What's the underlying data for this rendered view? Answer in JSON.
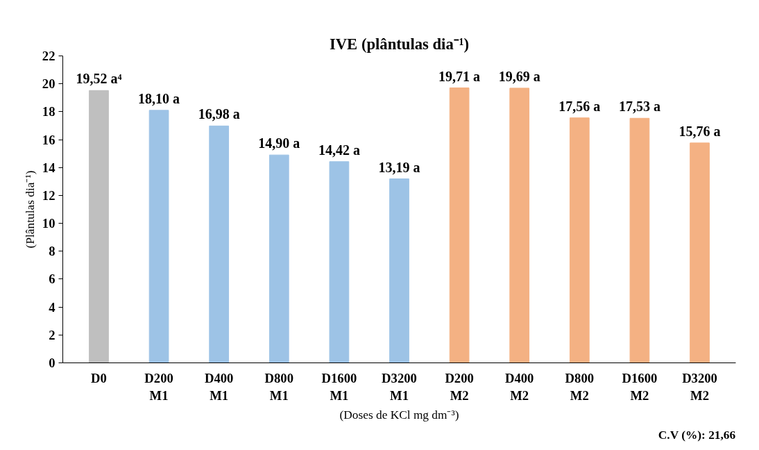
{
  "chart_data": {
    "type": "bar",
    "title": "IVE (plântulas dia⁻¹)",
    "ylabel": "(Plântulas dia⁻¹)",
    "xlabel": "(Doses de KCl mg dm⁻³)",
    "categories": [
      "D0",
      "D200\nM1",
      "D400\nM1",
      "D800\nM1",
      "D1600\nM1",
      "D3200\nM1",
      "D200\nM2",
      "D400\nM2",
      "D800\nM2",
      "D1600\nM2",
      "D3200\nM2"
    ],
    "values": [
      19.52,
      18.1,
      16.98,
      14.9,
      14.42,
      13.19,
      19.71,
      19.69,
      17.56,
      17.53,
      15.76
    ],
    "colors": [
      "#bfbfbf",
      "#9dc3e6",
      "#9dc3e6",
      "#9dc3e6",
      "#9dc3e6",
      "#9dc3e6",
      "#f4b183",
      "#f4b183",
      "#f4b183",
      "#f4b183",
      "#f4b183"
    ],
    "value_labels": [
      "19,52 a⁴",
      "18,10 a",
      "16,98 a",
      "14,90 a",
      "14,42 a",
      "13,19 a",
      "19,71 a",
      "19,69 a",
      "17,56 a",
      "17,53 a",
      "15,76 a"
    ],
    "ylim": [
      0,
      22
    ],
    "yticks": [
      0,
      2,
      4,
      6,
      8,
      10,
      12,
      14,
      16,
      18,
      20,
      22
    ],
    "grid": false,
    "annotations": [
      "C.V (%): 21,66"
    ]
  }
}
